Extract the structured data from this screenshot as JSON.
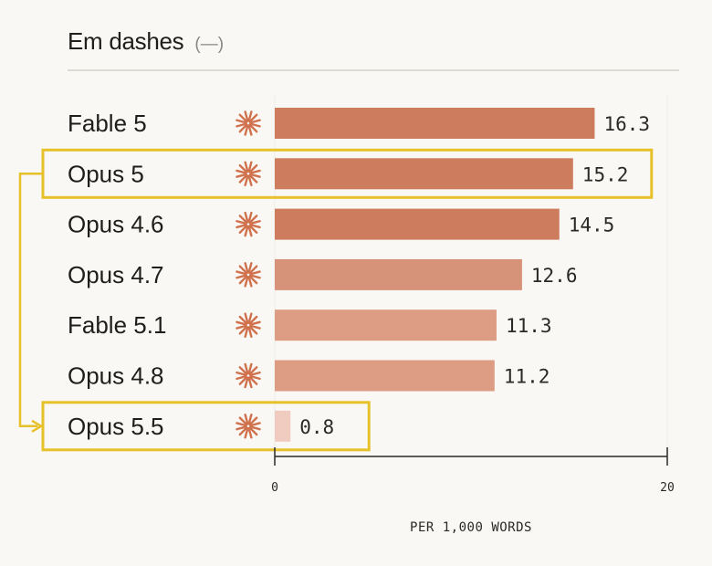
{
  "header": {
    "title": "Em dashes",
    "subtitle": "(—)"
  },
  "colors": {
    "bar_strong": "#cd7d5e",
    "bar_mid": "#d7937a",
    "bar_light": "#dd9c84",
    "bar_faint": "#efcbc0",
    "highlight": "#e6c12a",
    "star": "#d0714d"
  },
  "icons": {
    "row_marker": "asterisk-burst-icon"
  },
  "highlights": [
    "Opus 5",
    "Opus 5.5"
  ],
  "chart_data": {
    "type": "bar",
    "orientation": "horizontal",
    "categories": [
      "Fable 5",
      "Opus 5",
      "Opus 4.6",
      "Opus 4.7",
      "Fable 5.1",
      "Opus 4.8",
      "Opus 5.5"
    ],
    "values": [
      16.3,
      15.2,
      14.5,
      12.6,
      11.3,
      11.2,
      0.8
    ],
    "value_labels": [
      "16.3",
      "15.2",
      "14.5",
      "12.6",
      "11.3",
      "11.2",
      "0.8"
    ],
    "xlim": [
      0,
      20
    ],
    "xticks": [
      "0",
      "20"
    ],
    "xlabel": "PER 1,000 WORDS",
    "ylabel": "",
    "grid": false,
    "legend": "none"
  }
}
